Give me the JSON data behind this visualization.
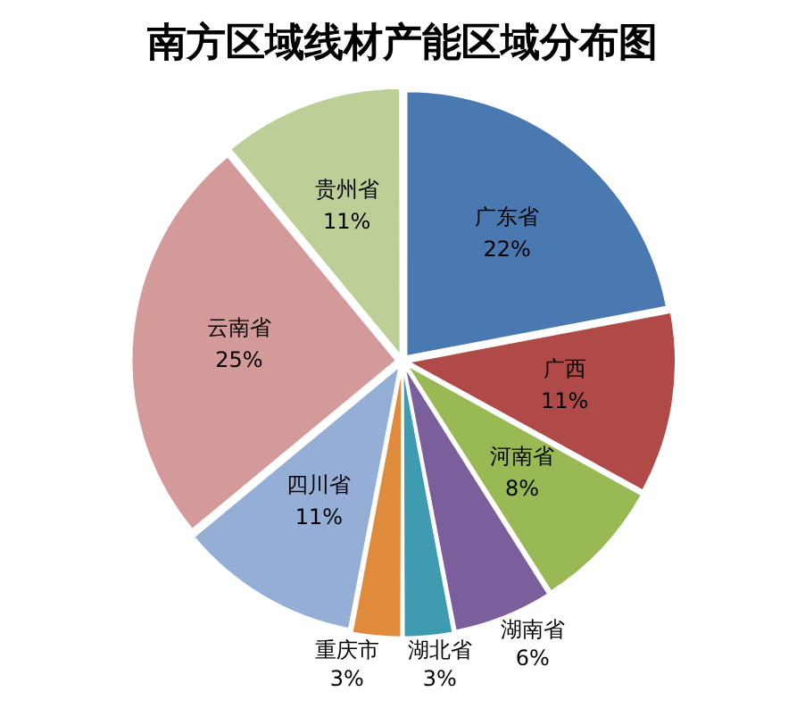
{
  "chart_data": {
    "type": "pie",
    "title": "南方区域线材产能区域分布图",
    "categories": [
      "广东省",
      "广西",
      "河南省",
      "湖南省",
      "湖北省",
      "重庆市",
      "四川省",
      "云南省",
      "贵州省"
    ],
    "values": [
      22,
      11,
      8,
      6,
      3,
      3,
      11,
      25,
      11
    ],
    "value_labels": [
      "22%",
      "11%",
      "8%",
      "6%",
      "3%",
      "3%",
      "11%",
      "25%",
      "11%"
    ],
    "colors": [
      "#4a78b0",
      "#b04a48",
      "#98b954",
      "#7b5e9c",
      "#3e9bb0",
      "#e08a3c",
      "#94aed6",
      "#d49a9a",
      "#bccf97"
    ],
    "legend": false
  }
}
